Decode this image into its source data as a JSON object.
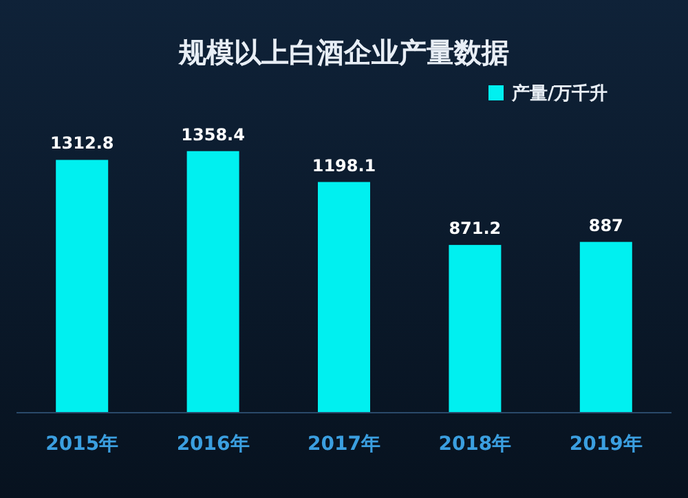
{
  "chart_data": {
    "type": "bar",
    "title": "规模以上白酒企业产量数据",
    "categories": [
      "2015年",
      "2016年",
      "2017年",
      "2018年",
      "2019年"
    ],
    "series": [
      {
        "name": "产量/万千升",
        "color": "#00f0f0",
        "values": [
          1312.8,
          1358.4,
          1198.1,
          871.2,
          887
        ]
      }
    ],
    "data_labels": true,
    "legend": "top right"
  }
}
